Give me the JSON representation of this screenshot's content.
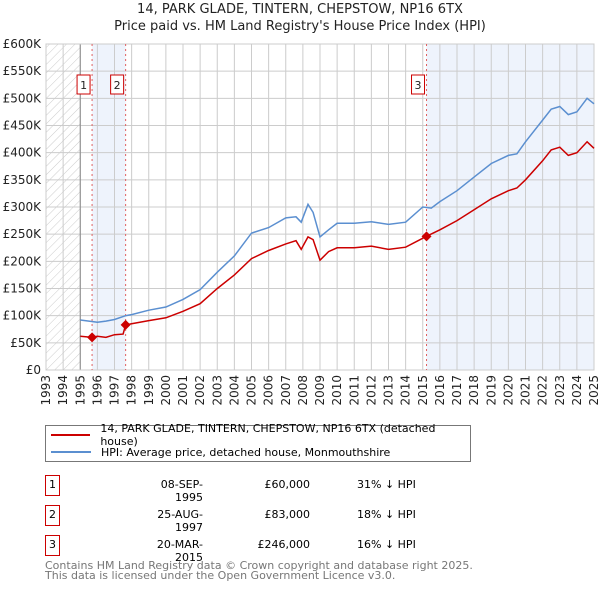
{
  "title_line1": "14, PARK GLADE, TINTERN, CHEPSTOW, NP16 6TX",
  "title_line2": "Price paid vs. HM Land Registry's House Price Index (HPI)",
  "legend": {
    "red_label": "14, PARK GLADE, TINTERN, CHEPSTOW, NP16 6TX (detached house)",
    "blue_label": "HPI: Average price, detached house, Monmouthshire"
  },
  "sales": [
    {
      "num": "1",
      "date": "08-SEP-1995",
      "price": "£60,000",
      "hpi": "31% ↓ HPI"
    },
    {
      "num": "2",
      "date": "25-AUG-1997",
      "price": "£83,000",
      "hpi": "18% ↓ HPI"
    },
    {
      "num": "3",
      "date": "20-MAR-2015",
      "price": "£246,000",
      "hpi": "16% ↓ HPI"
    }
  ],
  "footer": {
    "line1": "Contains HM Land Registry data © Crown copyright and database right 2025.",
    "line2": "This data is licensed under the Open Government Licence v3.0."
  },
  "chart_data": {
    "type": "line",
    "xlim": [
      1993,
      2025
    ],
    "ylim": [
      0,
      600000
    ],
    "yticks": [
      0,
      50000,
      100000,
      150000,
      200000,
      250000,
      300000,
      350000,
      400000,
      450000,
      500000,
      550000,
      600000
    ],
    "ytick_labels": [
      "£0",
      "£50K",
      "£100K",
      "£150K",
      "£200K",
      "£250K",
      "£300K",
      "£350K",
      "£400K",
      "£450K",
      "£500K",
      "£550K",
      "£600K"
    ],
    "xticks": [
      1993,
      1994,
      1995,
      1996,
      1997,
      1998,
      1999,
      2000,
      2001,
      2002,
      2003,
      2004,
      2005,
      2006,
      2007,
      2008,
      2009,
      2010,
      2011,
      2012,
      2013,
      2014,
      2015,
      2016,
      2017,
      2018,
      2019,
      2020,
      2021,
      2022,
      2023,
      2024,
      2025
    ],
    "colors": {
      "red": "#cc0000",
      "blue": "#5b8fd0",
      "shade": "#eef3fc"
    },
    "sale_points": [
      {
        "x": 1995.69,
        "y": 60000
      },
      {
        "x": 1997.65,
        "y": 83000
      },
      {
        "x": 2015.22,
        "y": 246000
      }
    ],
    "series": [
      {
        "name": "14, PARK GLADE, TINTERN, CHEPSTOW, NP16 6TX (detached house)",
        "color": "#cc0000",
        "x": [
          1995,
          1995.69,
          1996,
          1996.5,
          1997,
          1997.5,
          1997.65,
          1998,
          1999,
          2000,
          2001,
          2002,
          2003,
          2004,
          2005,
          2006,
          2007,
          2007.6,
          2007.9,
          2008.3,
          2008.6,
          2009,
          2009.5,
          2010,
          2011,
          2012,
          2013,
          2014,
          2015.22,
          2016,
          2017,
          2018,
          2019,
          2020,
          2020.5,
          2021,
          2022,
          2022.5,
          2023,
          2023.5,
          2024,
          2024.6,
          2025
        ],
        "y": [
          62000,
          60000,
          62000,
          60000,
          65000,
          66000,
          83000,
          85000,
          91000,
          96000,
          108000,
          122000,
          150000,
          175000,
          205000,
          220000,
          232000,
          238000,
          222000,
          245000,
          240000,
          202000,
          218000,
          225000,
          225000,
          228000,
          222000,
          226000,
          246000,
          258000,
          275000,
          295000,
          315000,
          330000,
          335000,
          350000,
          385000,
          405000,
          410000,
          395000,
          400000,
          420000,
          408000
        ]
      },
      {
        "name": "HPI: Average price, detached house, Monmouthshire",
        "color": "#5b8fd0",
        "x": [
          1995,
          1996,
          1996.5,
          1997,
          1997.65,
          1998,
          1999,
          2000,
          2001,
          2002,
          2003,
          2004,
          2005,
          2006,
          2007,
          2007.6,
          2007.9,
          2008.3,
          2008.6,
          2009,
          2009.5,
          2010,
          2011,
          2012,
          2013,
          2014,
          2015,
          2015.5,
          2016,
          2017,
          2018,
          2019,
          2020,
          2020.5,
          2021,
          2022,
          2022.5,
          2023,
          2023.5,
          2024,
          2024.6,
          2025
        ],
        "y": [
          92000,
          88000,
          90000,
          93000,
          100000,
          102000,
          110000,
          116000,
          130000,
          148000,
          180000,
          210000,
          252000,
          262000,
          280000,
          282000,
          272000,
          305000,
          290000,
          245000,
          258000,
          270000,
          270000,
          273000,
          268000,
          272000,
          300000,
          298000,
          310000,
          330000,
          355000,
          380000,
          395000,
          398000,
          420000,
          460000,
          480000,
          485000,
          470000,
          475000,
          500000,
          490000
        ]
      }
    ]
  }
}
